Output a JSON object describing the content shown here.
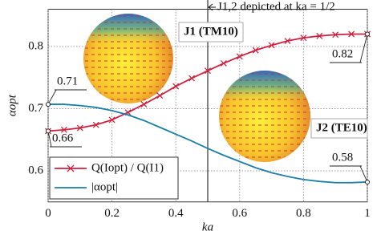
{
  "chart_data": {
    "type": "line",
    "xlabel": "ka",
    "ylabel": "αopt",
    "x": [
      0,
      0.05,
      0.1,
      0.15,
      0.2,
      0.25,
      0.3,
      0.35,
      0.4,
      0.45,
      0.5,
      0.55,
      0.6,
      0.65,
      0.7,
      0.75,
      0.8,
      0.85,
      0.9,
      0.95,
      1
    ],
    "series": [
      {
        "name": "Q(Iopt) / Q(I1)",
        "color": "#d0213f",
        "marker": "x",
        "values": [
          0.664,
          0.666,
          0.669,
          0.674,
          0.682,
          0.694,
          0.707,
          0.721,
          0.736,
          0.749,
          0.761,
          0.773,
          0.784,
          0.794,
          0.802,
          0.809,
          0.814,
          0.817,
          0.819,
          0.82,
          0.82
        ]
      },
      {
        "name": "|αopt|",
        "color": "#1a7fa6",
        "marker": "none",
        "values": [
          0.707,
          0.707,
          0.705,
          0.702,
          0.697,
          0.69,
          0.681,
          0.67,
          0.659,
          0.648,
          0.636,
          0.625,
          0.615,
          0.605,
          0.597,
          0.591,
          0.586,
          0.583,
          0.581,
          0.581,
          0.582
        ]
      }
    ],
    "xlim": [
      0,
      1
    ],
    "ylim": [
      0.55,
      0.86
    ],
    "xticks": [
      0,
      0.2,
      0.4,
      0.6,
      0.8,
      1
    ],
    "yticks": [
      0.6,
      0.7,
      0.8
    ],
    "grid": true,
    "legend": "lower left",
    "vline": {
      "x": 0.5,
      "text": "J1,2 depicted at ka = 1/2"
    },
    "boxes": [
      {
        "text": "J1 (TM10)"
      },
      {
        "text": "J2 (TE10)"
      }
    ],
    "annotations": [
      {
        "text": "0.71",
        "x": 0,
        "y": 0.707
      },
      {
        "text": "0.66",
        "x": 0,
        "y": 0.664
      },
      {
        "text": "0.82",
        "x": 1,
        "y": 0.82
      },
      {
        "text": "0.58",
        "x": 1,
        "y": 0.582
      }
    ]
  }
}
